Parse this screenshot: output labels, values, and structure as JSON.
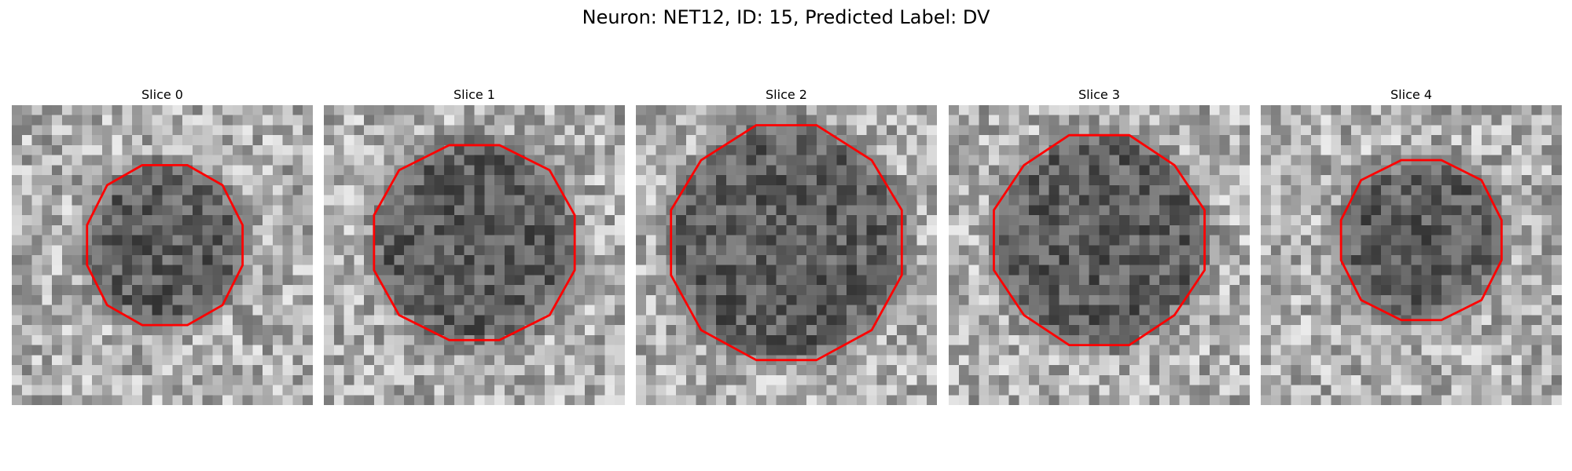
{
  "title": "Neuron: NET12, ID: 15, Predicted Label: DV",
  "colors": {
    "contour": "#ff0000",
    "colormap": "gray",
    "background": "#ffffff"
  },
  "slices": [
    {
      "label": "Slice 0"
    },
    {
      "label": "Slice 1"
    },
    {
      "label": "Slice 2"
    },
    {
      "label": "Slice 3"
    },
    {
      "label": "Slice 4"
    }
  ]
}
